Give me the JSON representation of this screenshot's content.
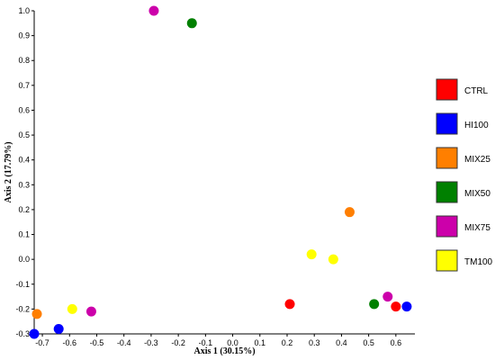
{
  "chart_data": {
    "type": "scatter",
    "title": "",
    "xlabel": "Axis 1 (30.15%)",
    "ylabel": "Axis 2 (17.79%)",
    "xlim": [
      -0.73,
      0.67
    ],
    "ylim": [
      -0.3,
      1.0
    ],
    "xticks": [
      "-0.7",
      "-0.6",
      "-0.5",
      "-0.4",
      "-0.3",
      "-0.2",
      "-0.1",
      "0.0",
      "0.1",
      "0.2",
      "0.3",
      "0.4",
      "0.5",
      "0.6"
    ],
    "xtick_values": [
      -0.7,
      -0.6,
      -0.5,
      -0.4,
      -0.3,
      -0.2,
      -0.1,
      0.0,
      0.1,
      0.2,
      0.3,
      0.4,
      0.5,
      0.6
    ],
    "yticks": [
      "-0.3",
      "-0.2",
      "-0.1",
      "0.0",
      "0.1",
      "0.2",
      "0.3",
      "0.4",
      "0.5",
      "0.6",
      "0.7",
      "0.8",
      "0.9",
      "1.0"
    ],
    "ytick_values": [
      -0.3,
      -0.2,
      -0.1,
      0.0,
      0.1,
      0.2,
      0.3,
      0.4,
      0.5,
      0.6,
      0.7,
      0.8,
      0.9,
      1.0
    ],
    "grid": false,
    "legend_position": "right",
    "series": [
      {
        "name": "CTRL",
        "color": "#ff0000",
        "points": [
          [
            0.21,
            -0.18
          ],
          [
            0.6,
            -0.19
          ]
        ]
      },
      {
        "name": "HI100",
        "color": "#0000ff",
        "points": [
          [
            -0.73,
            -0.3
          ],
          [
            -0.64,
            -0.28
          ],
          [
            0.64,
            -0.19
          ]
        ]
      },
      {
        "name": "MIX25",
        "color": "#ff7f00",
        "points": [
          [
            -0.72,
            -0.22
          ],
          [
            0.43,
            0.19
          ]
        ]
      },
      {
        "name": "MIX50",
        "color": "#008000",
        "points": [
          [
            -0.15,
            0.95
          ],
          [
            0.52,
            -0.18
          ]
        ]
      },
      {
        "name": "MIX75",
        "color": "#cc00aa",
        "points": [
          [
            -0.29,
            1.0
          ],
          [
            -0.52,
            -0.21
          ],
          [
            0.57,
            -0.15
          ]
        ]
      },
      {
        "name": "TM100",
        "color": "#ffff00",
        "points": [
          [
            -0.59,
            -0.2
          ],
          [
            0.29,
            0.02
          ],
          [
            0.37,
            0.0
          ]
        ]
      }
    ]
  }
}
